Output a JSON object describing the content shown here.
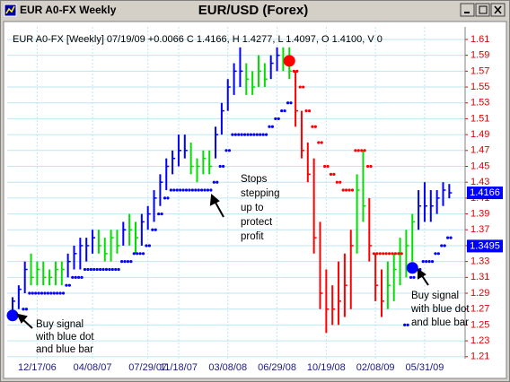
{
  "chart_data": {
    "type": "ohlc",
    "window_title": "EUR A0-FX Weekly",
    "title": "EUR/USD (Forex)",
    "info_line": "EUR A0-FX [Weekly] 07/19/09 +0.0066 C 1.4166, H 1.4277, L 1.4097, O 1.4100, V 0",
    "categories": [
      null,
      null,
      null,
      null,
      "12/17/06",
      null,
      null,
      null,
      null,
      null,
      null,
      null,
      null,
      "04/08/07",
      null,
      null,
      null,
      null,
      null,
      null,
      null,
      null,
      "07/29/07",
      null,
      null,
      null,
      null,
      "11/18/07",
      null,
      null,
      null,
      null,
      null,
      null,
      null,
      "03/08/08",
      null,
      null,
      null,
      null,
      null,
      null,
      null,
      "06/29/08",
      null,
      null,
      null,
      null,
      null,
      null,
      null,
      "10/19/08",
      null,
      null,
      null,
      null,
      null,
      null,
      null,
      "02/08/09",
      null,
      null,
      null,
      null,
      null,
      null,
      null,
      "05/31/09",
      null,
      null,
      null,
      null
    ],
    "high": [
      1.285,
      1.3,
      1.33,
      1.34,
      1.33,
      1.33,
      1.32,
      1.33,
      1.33,
      1.34,
      1.35,
      1.36,
      1.36,
      1.37,
      1.37,
      1.36,
      1.37,
      1.37,
      1.38,
      1.39,
      1.38,
      1.39,
      1.4,
      1.42,
      1.44,
      1.46,
      1.47,
      1.49,
      1.49,
      1.48,
      1.46,
      1.47,
      1.47,
      1.5,
      1.53,
      1.56,
      1.58,
      1.6,
      1.58,
      1.57,
      1.59,
      1.58,
      1.59,
      1.6,
      1.6,
      1.6,
      1.57,
      1.52,
      1.48,
      1.46,
      1.38,
      1.32,
      1.3,
      1.33,
      1.34,
      1.37,
      1.44,
      1.47,
      1.41,
      1.34,
      1.32,
      1.33,
      1.34,
      1.36,
      1.37,
      1.39,
      1.42,
      1.43,
      1.42,
      1.42,
      1.43,
      1.4277
    ],
    "low": [
      1.262,
      1.27,
      1.29,
      1.3,
      1.3,
      1.3,
      1.3,
      1.3,
      1.3,
      1.31,
      1.32,
      1.32,
      1.33,
      1.34,
      1.34,
      1.33,
      1.33,
      1.34,
      1.35,
      1.35,
      1.34,
      1.35,
      1.37,
      1.38,
      1.4,
      1.42,
      1.44,
      1.45,
      1.46,
      1.44,
      1.43,
      1.44,
      1.44,
      1.46,
      1.49,
      1.52,
      1.54,
      1.55,
      1.54,
      1.54,
      1.55,
      1.55,
      1.56,
      1.57,
      1.57,
      1.56,
      1.5,
      1.46,
      1.43,
      1.34,
      1.27,
      1.24,
      1.25,
      1.25,
      1.26,
      1.27,
      1.34,
      1.38,
      1.33,
      1.28,
      1.26,
      1.27,
      1.28,
      1.3,
      1.31,
      1.33,
      1.37,
      1.38,
      1.38,
      1.39,
      1.4,
      1.4097
    ],
    "close": [
      1.28,
      1.295,
      1.32,
      1.31,
      1.32,
      1.31,
      1.31,
      1.32,
      1.32,
      1.33,
      1.34,
      1.35,
      1.35,
      1.36,
      1.35,
      1.34,
      1.36,
      1.35,
      1.37,
      1.37,
      1.36,
      1.38,
      1.39,
      1.41,
      1.43,
      1.45,
      1.46,
      1.47,
      1.47,
      1.45,
      1.45,
      1.46,
      1.45,
      1.49,
      1.52,
      1.55,
      1.57,
      1.57,
      1.56,
      1.55,
      1.57,
      1.56,
      1.58,
      1.59,
      1.58,
      1.57,
      1.52,
      1.47,
      1.44,
      1.36,
      1.29,
      1.27,
      1.27,
      1.28,
      1.3,
      1.35,
      1.42,
      1.4,
      1.35,
      1.3,
      1.28,
      1.3,
      1.32,
      1.34,
      1.35,
      1.38,
      1.4,
      1.4,
      1.4,
      1.41,
      1.42,
      1.4166
    ],
    "colors": [
      "#0000ff",
      "#0000ff",
      "#0000ff",
      "#00e000",
      "#00e000",
      "#00e000",
      "#00e000",
      "#00e000",
      "#00e000",
      "#0000ff",
      "#0000ff",
      "#0000ff",
      "#0000ff",
      "#0000ff",
      "#00e000",
      "#00e000",
      "#00e000",
      "#00e000",
      "#0000ff",
      "#00e000",
      "#00e000",
      "#0000ff",
      "#0000ff",
      "#0000ff",
      "#0000ff",
      "#0000ff",
      "#0000ff",
      "#0000ff",
      "#0000ff",
      "#00e000",
      "#00e000",
      "#00e000",
      "#00e000",
      "#0000ff",
      "#0000ff",
      "#0000ff",
      "#0000ff",
      "#0000ff",
      "#00e000",
      "#00e000",
      "#00e000",
      "#00e000",
      "#0000ff",
      "#0000ff",
      "#00e000",
      "#00e000",
      "#ff0000",
      "#ff0000",
      "#ff0000",
      "#ff0000",
      "#ff0000",
      "#ff0000",
      "#ff0000",
      "#ff0000",
      "#ff0000",
      "#ff0000",
      "#00e000",
      "#00e000",
      "#ff0000",
      "#ff0000",
      "#ff0000",
      "#00e000",
      "#00e000",
      "#00e000",
      "#00e000",
      "#00e000",
      "#0000ff",
      "#0000ff",
      "#0000ff",
      "#0000ff",
      "#0000ff",
      "#0000ff"
    ],
    "stops": [
      {
        "color": "#0000ff",
        "values": [
          null,
          null,
          1.27,
          1.29,
          1.29,
          1.29,
          1.29,
          1.29,
          1.29,
          1.3,
          1.31,
          1.31,
          1.32,
          1.32,
          1.32,
          1.32,
          1.32,
          1.32,
          1.33,
          1.33,
          1.34,
          1.34,
          1.35,
          1.37,
          1.39,
          1.41,
          1.42,
          1.42,
          1.42,
          1.42,
          1.42,
          1.42,
          1.42,
          1.43,
          1.45,
          1.47,
          1.49,
          1.49,
          1.49,
          1.49,
          1.49,
          1.49,
          1.5,
          1.51,
          1.52,
          1.53,
          null,
          null,
          null,
          null,
          null,
          null,
          null,
          null,
          null,
          null,
          null,
          null,
          null,
          null,
          null,
          null,
          null,
          null,
          1.25,
          1.31,
          1.32,
          1.33,
          1.33,
          1.34,
          1.35,
          1.36
        ]
      },
      {
        "color": "#ff0000",
        "values": [
          null,
          null,
          null,
          null,
          null,
          null,
          null,
          null,
          null,
          null,
          null,
          null,
          null,
          null,
          null,
          null,
          null,
          null,
          null,
          null,
          null,
          null,
          null,
          null,
          null,
          null,
          null,
          null,
          null,
          null,
          null,
          null,
          null,
          null,
          null,
          null,
          null,
          null,
          null,
          null,
          null,
          null,
          null,
          null,
          null,
          null,
          1.57,
          1.55,
          1.52,
          1.5,
          1.48,
          1.45,
          1.44,
          1.43,
          1.42,
          1.42,
          1.47,
          1.47,
          1.45,
          1.34,
          1.34,
          1.34,
          1.34,
          1.34,
          null,
          null,
          null,
          null,
          null,
          null,
          null,
          null
        ]
      }
    ],
    "signals": [
      {
        "at": 0,
        "value": 1.262,
        "color": "#0000ff"
      },
      {
        "at": 45,
        "value": 1.583,
        "color": "#ff0000"
      },
      {
        "at": 65,
        "value": 1.322,
        "color": "#0000ff"
      }
    ],
    "price_labels": [
      {
        "value": 1.4166,
        "color": "#0000ff"
      },
      {
        "value": 1.3495,
        "color": "#0000ff"
      }
    ],
    "ylim": [
      1.2075,
      1.6258
    ],
    "yticks": [
      1.61,
      1.59,
      1.57,
      1.55,
      1.53,
      1.51,
      1.49,
      1.47,
      1.45,
      1.43,
      1.41,
      1.39,
      1.37,
      1.35,
      1.33,
      1.31,
      1.29,
      1.27,
      1.25,
      1.23,
      1.21
    ],
    "grid": true,
    "axis_color": "#e00000",
    "annotations": [
      {
        "lines": [
          "Buy signal",
          "with blue dot",
          "and blue bar"
        ]
      },
      {
        "lines": [
          "Stops",
          "stepping",
          "up to",
          "protect",
          "profit"
        ]
      },
      {
        "lines": [
          "Buy signal",
          "with blue dot",
          "and blue bar"
        ]
      }
    ]
  }
}
